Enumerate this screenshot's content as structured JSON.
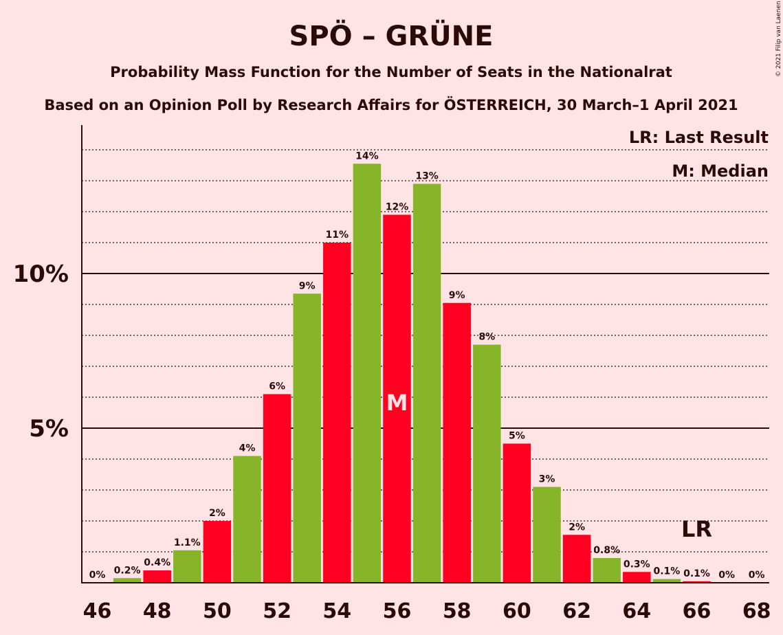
{
  "chart_data": {
    "type": "bar",
    "title": "SPÖ – GRÜNE",
    "subtitle": "Probability Mass Function for the Number of Seats in the Nationalrat",
    "subtitle2": "Based on an Opinion Poll by Research Affairs for ÖSTERREICH, 30 March–1 April 2021",
    "copyright": "© 2021 Filip van Laenen",
    "legend": [
      "LR: Last Result",
      "M: Median"
    ],
    "legend_placement": "top-right",
    "x": [
      46,
      47,
      48,
      49,
      50,
      51,
      52,
      53,
      54,
      55,
      56,
      57,
      58,
      59,
      60,
      61,
      62,
      63,
      64,
      65,
      66,
      67,
      68
    ],
    "values": [
      0,
      0.15,
      0.4,
      1.05,
      2.0,
      4.1,
      6.1,
      9.35,
      11.0,
      13.55,
      11.9,
      12.9,
      9.05,
      7.7,
      4.5,
      3.1,
      1.55,
      0.8,
      0.35,
      0.12,
      0.05,
      0,
      0
    ],
    "data_labels": [
      "0%",
      "0.2%",
      "0.4%",
      "1.1%",
      "2%",
      "4%",
      "6%",
      "9%",
      "11%",
      "14%",
      "12%",
      "13%",
      "9%",
      "8%",
      "5%",
      "3%",
      "2%",
      "0.8%",
      "0.3%",
      "0.1%",
      "0.1%",
      "0%",
      "0%"
    ],
    "xtick_labels": [
      "46",
      "48",
      "50",
      "52",
      "54",
      "56",
      "58",
      "60",
      "62",
      "64",
      "66",
      "68"
    ],
    "ytick_labels": [
      "5%",
      "10%"
    ],
    "yticks": [
      5,
      10
    ],
    "ylim": [
      0,
      14.8
    ],
    "grid": "dotted every 1%, solid at 5% and 10%",
    "median_seat": 56,
    "median_label": "M",
    "last_result_seat": 66,
    "last_result_label": "LR",
    "colors": {
      "red": "#ff0020",
      "green": "#86b52a",
      "background": "#ffe3e5",
      "text": "#2b0a0a"
    }
  }
}
